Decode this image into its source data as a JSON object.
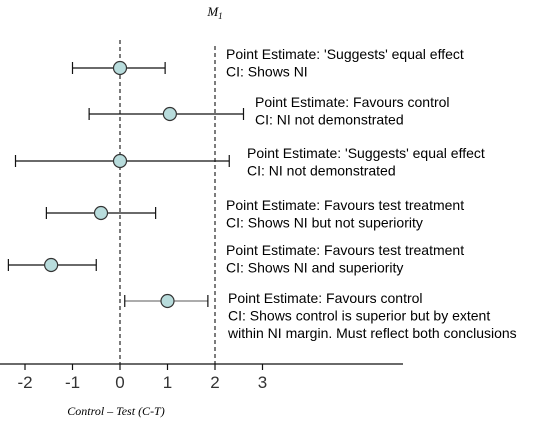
{
  "chart_data": {
    "type": "forest",
    "margin_label": "M",
    "margin_label_sub": "1",
    "margin_value": 2,
    "xlabel": "Control – Test (C-T)",
    "xlim": [
      -2.4,
      5.9
    ],
    "xticks": [
      -2,
      -1,
      0,
      1,
      2,
      3
    ],
    "xtick_labels": [
      "-2",
      "-1",
      "0",
      "1",
      "2",
      "3"
    ],
    "colors": {
      "marker_fill": "#b8dcdc",
      "marker_stroke": "#333333",
      "ci_line": "#111111",
      "ci_line_muted": "#7a7a7a",
      "dashed": "#111111",
      "text": "#000000"
    },
    "rows": [
      {
        "estimate": 0,
        "ci_low": -1.0,
        "ci_high": 0.95,
        "label_line1": "Point Estimate: 'Suggests' equal effect",
        "label_line2": "CI: Shows NI"
      },
      {
        "estimate": 1.05,
        "ci_low": -0.65,
        "ci_high": 2.6,
        "label_line1": "Point Estimate: Favours control",
        "label_line2": "CI: NI not demonstrated"
      },
      {
        "estimate": 0,
        "ci_low": -2.2,
        "ci_high": 2.3,
        "label_line1": "Point Estimate: 'Suggests' equal effect",
        "label_line2": "CI: NI not demonstrated"
      },
      {
        "estimate": -0.4,
        "ci_low": -1.55,
        "ci_high": 0.75,
        "label_line1": "Point Estimate: Favours test treatment",
        "label_line2": "CI: Shows NI but not superiority"
      },
      {
        "estimate": -1.45,
        "ci_low": -2.35,
        "ci_high": -0.5,
        "label_line1": "Point Estimate: Favours test treatment",
        "label_line2": "CI: Shows NI and superiority"
      },
      {
        "estimate": 1.0,
        "ci_low": 0.1,
        "ci_high": 1.85,
        "muted_ci": true,
        "label_line1": "Point Estimate: Favours control",
        "label_line2": "CI: Shows control is superior but by extent",
        "label_line3": "within NI margin. Must reflect both conclusions"
      }
    ]
  }
}
